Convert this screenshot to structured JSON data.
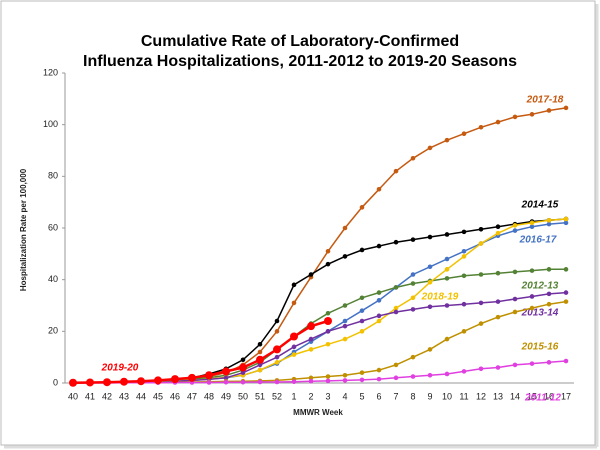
{
  "chart_data": {
    "type": "line",
    "title": [
      "Cumulative Rate of Laboratory-Confirmed",
      "Influenza Hospitalizations, 2011-2012 to 2019-20 Seasons"
    ],
    "x_label": "MMWR Week",
    "y_label": "Hospitalization Rate per 100,000",
    "categories": [
      "40",
      "41",
      "42",
      "43",
      "44",
      "45",
      "46",
      "47",
      "48",
      "49",
      "50",
      "51",
      "52",
      "1",
      "2",
      "3",
      "4",
      "5",
      "6",
      "7",
      "8",
      "9",
      "10",
      "11",
      "12",
      "13",
      "14",
      "15",
      "16",
      "17"
    ],
    "ylim": [
      0,
      120
    ],
    "yticks": [
      0,
      20,
      40,
      60,
      80,
      100,
      120
    ],
    "series": [
      {
        "name": "2017-18",
        "color": "#c55a11",
        "values": [
          0.1,
          0.2,
          0.3,
          0.5,
          0.7,
          1,
          1.3,
          1.8,
          2.5,
          4,
          7,
          12,
          20,
          31,
          41,
          51,
          60,
          68,
          75,
          82,
          87,
          91,
          94,
          96.5,
          99,
          101,
          103,
          104,
          105.5,
          106.5
        ]
      },
      {
        "name": "2014-15",
        "color": "#000000",
        "values": [
          0.1,
          0.2,
          0.3,
          0.4,
          0.6,
          0.9,
          1.3,
          2,
          3.5,
          5.5,
          9,
          15,
          24,
          38,
          42,
          46,
          49,
          51.5,
          53,
          54.5,
          55.5,
          56.5,
          57.5,
          58.5,
          59.5,
          60.5,
          61.5,
          62.5,
          63,
          63.5
        ]
      },
      {
        "name": "2016-17",
        "color": "#4472c4",
        "values": [
          0,
          0.1,
          0.2,
          0.3,
          0.4,
          0.5,
          0.7,
          1,
          1.5,
          2,
          3,
          5,
          7.5,
          12,
          16,
          20,
          24,
          28,
          32,
          37,
          42,
          45,
          48,
          51,
          54,
          57,
          59,
          60.5,
          61.5,
          62
        ]
      },
      {
        "name": "2012-13",
        "color": "#548235",
        "values": [
          0.1,
          0.2,
          0.3,
          0.4,
          0.6,
          0.8,
          1.1,
          1.5,
          2,
          3,
          5,
          8,
          13,
          18,
          23,
          27,
          30,
          33,
          35,
          37,
          38.5,
          39.5,
          40.5,
          41.5,
          42,
          42.5,
          43,
          43.5,
          44,
          44
        ]
      },
      {
        "name": "2018-19",
        "color": "#f2c200",
        "values": [
          0,
          0.1,
          0.2,
          0.3,
          0.4,
          0.6,
          0.8,
          1.1,
          1.5,
          2.2,
          3,
          5,
          8,
          11,
          13,
          15,
          17,
          20,
          24,
          29,
          33,
          39,
          44,
          49,
          54,
          58,
          61,
          62,
          63,
          63.5
        ]
      },
      {
        "name": "2013-14",
        "color": "#7030a0",
        "values": [
          0,
          0.1,
          0.2,
          0.3,
          0.4,
          0.5,
          0.7,
          1,
          1.4,
          2,
          4,
          7,
          10,
          14,
          17,
          20,
          22,
          24,
          26,
          27.5,
          28.5,
          29.5,
          30,
          30.5,
          31,
          31.5,
          32.5,
          33.5,
          34.5,
          35
        ]
      },
      {
        "name": "2015-16",
        "color": "#bf9000",
        "values": [
          0,
          0.1,
          0.1,
          0.2,
          0.2,
          0.3,
          0.3,
          0.4,
          0.5,
          0.6,
          0.7,
          0.8,
          1,
          1.5,
          2,
          2.5,
          3,
          4,
          5,
          7,
          10,
          13,
          17,
          20,
          23,
          25.5,
          27.5,
          29,
          30.5,
          31.5
        ]
      },
      {
        "name": "2011-12",
        "color": "#e040e0",
        "values": [
          0,
          0,
          0,
          0.1,
          0.1,
          0.1,
          0.2,
          0.2,
          0.2,
          0.3,
          0.3,
          0.4,
          0.4,
          0.5,
          0.7,
          0.8,
          1,
          1.2,
          1.5,
          2,
          2.5,
          3,
          3.5,
          4.5,
          5.5,
          6,
          7,
          7.5,
          8,
          8.5
        ]
      },
      {
        "name": "2019-20",
        "color": "#ff0000",
        "values": [
          0.1,
          0.2,
          0.3,
          0.5,
          0.7,
          1,
          1.5,
          2,
          3,
          4.5,
          6,
          9,
          13,
          18,
          22,
          24,
          null,
          null,
          null,
          null,
          null,
          null,
          null,
          null,
          null,
          null,
          null,
          null,
          null,
          null
        ]
      }
    ]
  }
}
